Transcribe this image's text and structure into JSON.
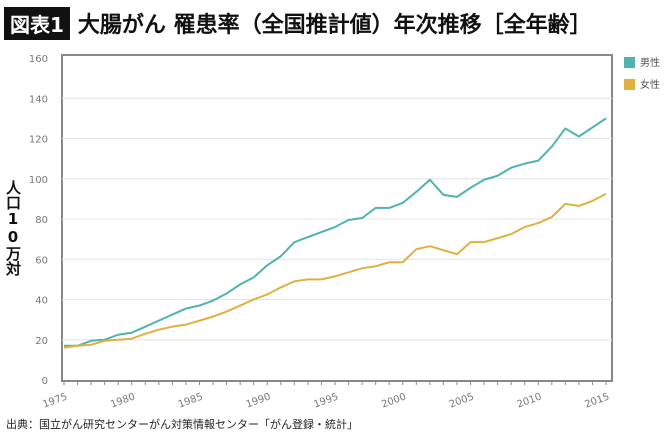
{
  "header": {
    "badge": "図表1",
    "title": "大腸がん 罹患率（全国推計値）年次推移［全年齢］"
  },
  "source": "出典：国立がん研究センターがん対策情報センター「がん登録・統計」",
  "chart_data": {
    "type": "line",
    "title": "大腸がん 罹患率（全国推計値）年次推移［全年齢］",
    "ylabel": "人口10万対",
    "xlabel": "",
    "xlim": [
      1975,
      2015
    ],
    "ylim": [
      0,
      160
    ],
    "yticks": [
      0,
      20,
      40,
      60,
      80,
      100,
      120,
      140,
      160
    ],
    "xticks": [
      1975,
      1980,
      1985,
      1990,
      1995,
      2000,
      2005,
      2010,
      2015
    ],
    "grid": true,
    "legend": "right",
    "x": [
      1975,
      1976,
      1977,
      1978,
      1979,
      1980,
      1981,
      1982,
      1983,
      1984,
      1985,
      1986,
      1987,
      1988,
      1989,
      1990,
      1991,
      1992,
      1993,
      1994,
      1995,
      1996,
      1997,
      1998,
      1999,
      2000,
      2001,
      2002,
      2003,
      2004,
      2005,
      2006,
      2007,
      2008,
      2009,
      2010,
      2011,
      2012,
      2013,
      2014,
      2015
    ],
    "series": [
      {
        "name": "男性",
        "color": "#4fb3b0",
        "values": [
          17,
          17,
          19.5,
          20,
          22.5,
          23.5,
          26.5,
          29.5,
          32.5,
          35.5,
          37,
          39.5,
          43,
          47.5,
          51,
          57,
          61.5,
          68.5,
          71,
          73.5,
          76,
          79.5,
          80.5,
          85.5,
          85.5,
          88,
          93.5,
          99.5,
          92,
          91,
          95.5,
          99.5,
          101.5,
          105.5,
          107.5,
          109,
          116,
          125,
          121,
          125.5,
          130
        ]
      },
      {
        "name": "女性",
        "color": "#e0b040",
        "values": [
          16,
          17,
          17.5,
          19.5,
          20,
          20.5,
          23,
          25,
          26.5,
          27.5,
          29.5,
          31.5,
          34,
          37,
          40,
          42.5,
          46,
          49,
          50,
          50,
          51.5,
          53.5,
          55.5,
          56.5,
          58.5,
          58.5,
          65,
          66.5,
          64.5,
          62.5,
          68.5,
          68.5,
          70.5,
          72.5,
          76,
          78,
          81,
          87.5,
          86.5,
          89,
          92.5
        ]
      }
    ]
  }
}
